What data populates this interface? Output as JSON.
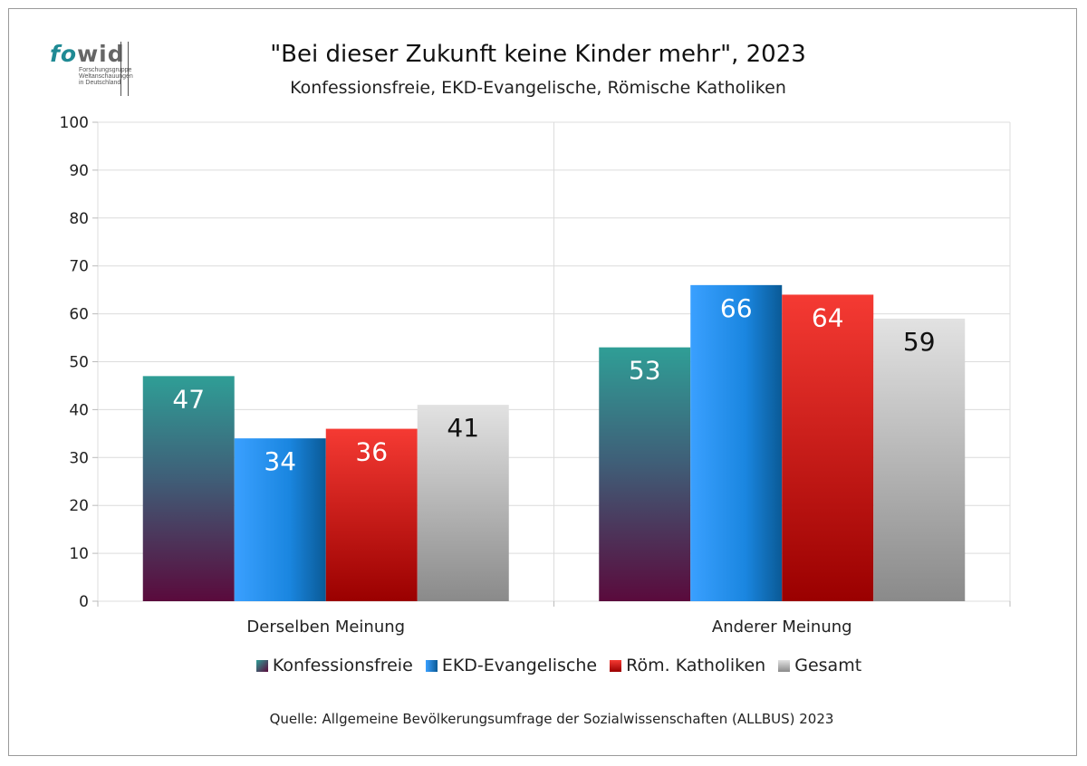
{
  "logo": {
    "part1": "fo",
    "part2": "wid",
    "sub1": "Forschungsgruppe",
    "sub2": "Weltanschauungen",
    "sub3": "in Deutschland"
  },
  "title": "\"Bei dieser Zukunft keine Kinder mehr\", 2023",
  "subtitle": "Konfessionsfreie, EKD-Evangelische, Römische Katholiken",
  "source": "Quelle: Allgemeine Bevölkerungsumfrage der Sozialwissenschaften (ALLBUS) 2023",
  "colors": {
    "konfessionsfreie": "#2a9a94",
    "ekd": "#1e90ff",
    "katholiken": "#e8302b",
    "gesamt": "#d2d2d2"
  },
  "chart_data": {
    "type": "bar",
    "title": "\"Bei dieser Zukunft keine Kinder mehr\", 2023",
    "subtitle": "Konfessionsfreie, EKD-Evangelische, Römische Katholiken",
    "categories": [
      "Derselben Meinung",
      "Anderer Meinung"
    ],
    "series": [
      {
        "name": "Konfessionsfreie",
        "values": [
          47,
          53
        ]
      },
      {
        "name": "EKD-Evangelische",
        "values": [
          34,
          66
        ]
      },
      {
        "name": "Röm. Katholiken",
        "values": [
          36,
          64
        ]
      },
      {
        "name": "Gesamt",
        "values": [
          41,
          59
        ]
      }
    ],
    "ylim": [
      0,
      100
    ],
    "yticks": [
      0,
      10,
      20,
      30,
      40,
      50,
      60,
      70,
      80,
      90,
      100
    ],
    "grid": true,
    "legend": "bottom"
  }
}
